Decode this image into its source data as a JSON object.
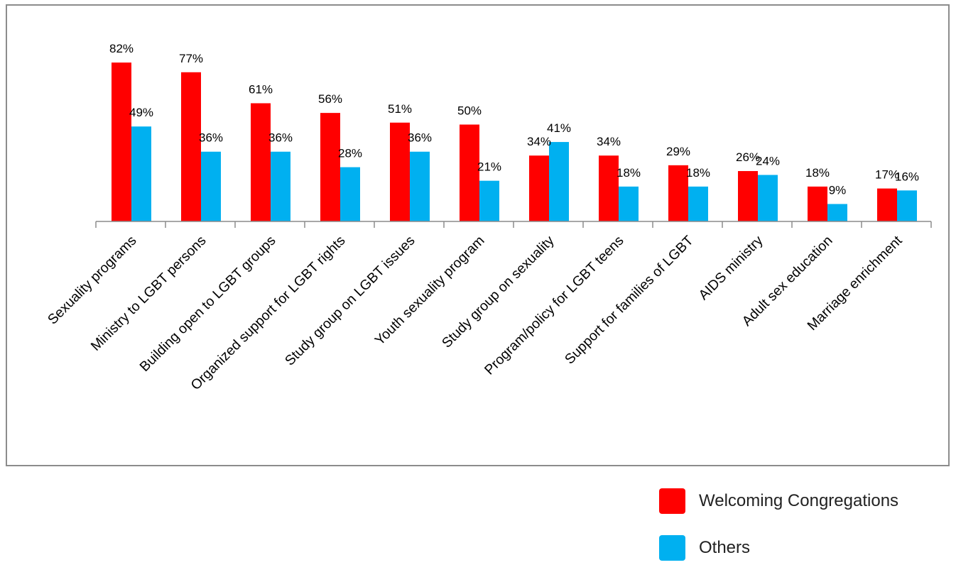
{
  "chart_data": {
    "type": "bar",
    "categories": [
      "Sexuality programs",
      "Ministry to LGBT persons",
      "Building open to LGBT groups",
      "Organized support for LGBT rights",
      "Study group on LGBT issues",
      "Youth sexuality program",
      "Study group on sexuality",
      "Program/policy for LGBT teens",
      "Support for families of LGBT",
      "AIDS ministry",
      "Adult sex education",
      "Marriage enrichment"
    ],
    "series": [
      {
        "name": "Welcoming Congregations",
        "color": "#ff0000",
        "values": [
          82,
          77,
          61,
          56,
          51,
          50,
          34,
          34,
          29,
          26,
          18,
          17
        ],
        "labels": [
          "82%",
          "77%",
          "61%",
          "56%",
          "51%",
          "50%",
          "34%",
          "34%",
          "29%",
          "26%",
          "18%",
          "17%"
        ]
      },
      {
        "name": "Others",
        "color": "#00b0f0",
        "values": [
          49,
          36,
          36,
          28,
          36,
          21,
          41,
          18,
          18,
          24,
          9,
          16
        ],
        "labels": [
          "49%",
          "36%",
          "36%",
          "28%",
          "36%",
          "21%",
          "41%",
          "18%",
          "18%",
          "24%",
          "9%",
          "16%"
        ]
      }
    ],
    "ylim": [
      0,
      100
    ],
    "grid": false,
    "legend_position": "bottom-right",
    "title": "",
    "xlabel": "",
    "ylabel": ""
  }
}
